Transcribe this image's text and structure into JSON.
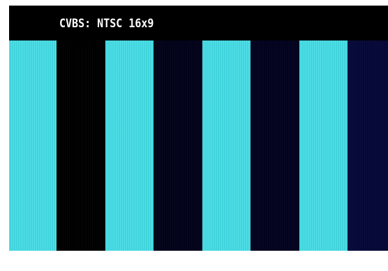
{
  "osd": {
    "label": "CVBS: NTSC 16x9"
  },
  "colors": {
    "cyan": "#44dde6",
    "dark_black": "#000000",
    "dark_navy": "#02021a",
    "dark_blue": "#03031f",
    "dark_deep_blue": "#070a3a"
  },
  "pattern": {
    "bars": [
      {
        "name": "bar-1",
        "color": "cyan"
      },
      {
        "name": "bar-2",
        "color": "dark_black"
      },
      {
        "name": "bar-3",
        "color": "cyan"
      },
      {
        "name": "bar-4",
        "color": "dark_navy"
      },
      {
        "name": "bar-5",
        "color": "cyan"
      },
      {
        "name": "bar-6",
        "color": "dark_blue"
      },
      {
        "name": "bar-7",
        "color": "cyan"
      },
      {
        "name": "bar-8",
        "color": "dark_deep_blue"
      }
    ]
  }
}
